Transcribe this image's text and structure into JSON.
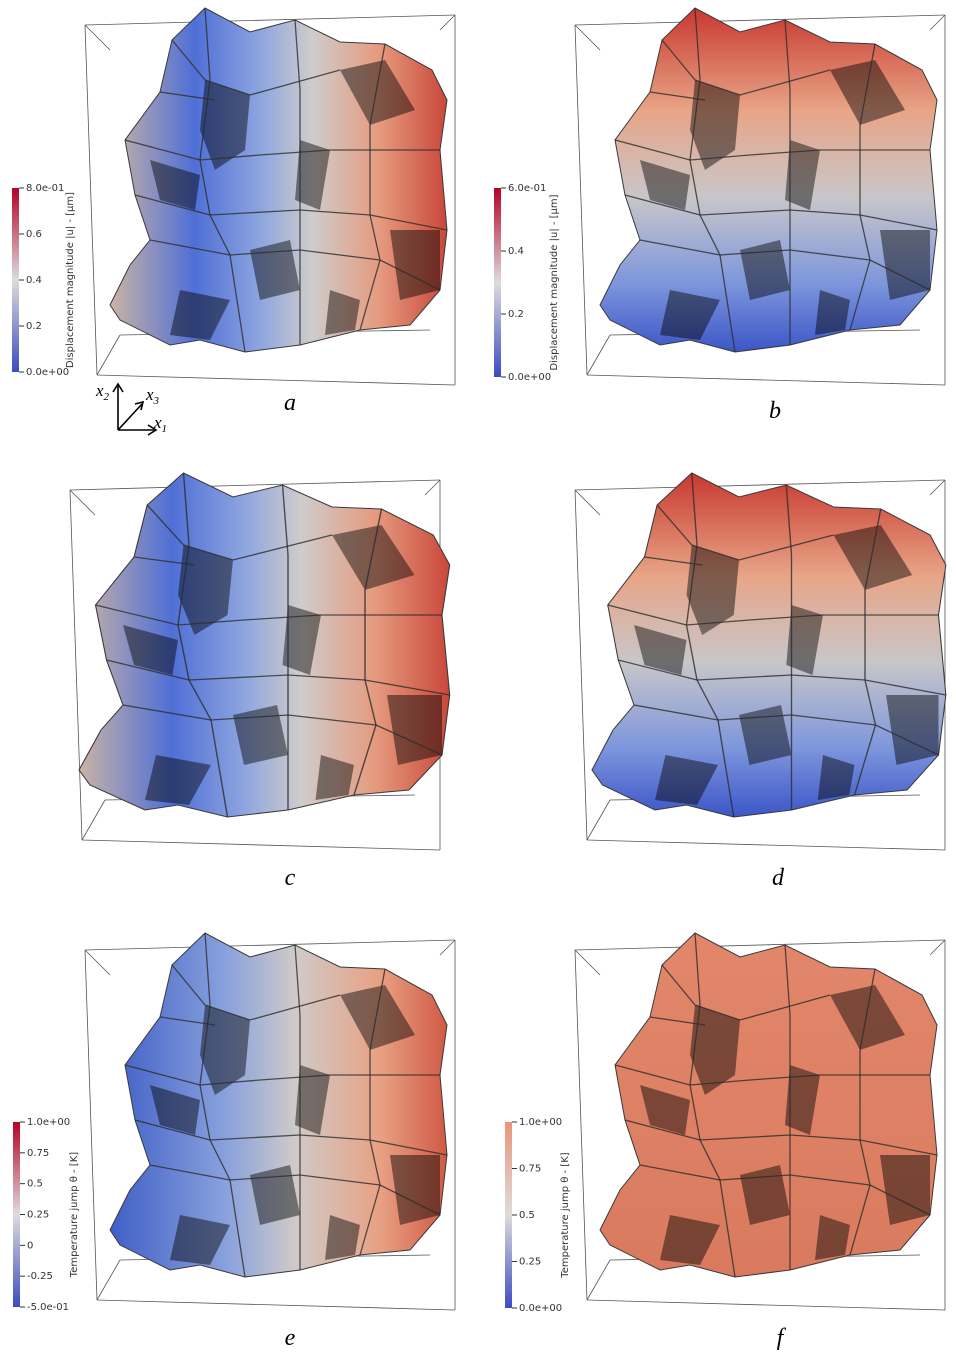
{
  "panels": [
    {
      "label": "a",
      "colorbar": {
        "title": "Displacement magnitude |u| - [μm]",
        "ticks": [
          "8.0e-01",
          "0.6",
          "0.4",
          "0.2",
          "0.0e+00"
        ]
      }
    },
    {
      "label": "b",
      "colorbar": {
        "title": "Displacement magnitude |u| - [μm]",
        "ticks": [
          "6.0e-01",
          "0.4",
          "0.2",
          "0.0e+00"
        ]
      }
    },
    {
      "label": "c"
    },
    {
      "label": "d"
    },
    {
      "label": "e",
      "colorbar": {
        "title": "Temperature jump θ - [K]",
        "ticks": [
          "1.0e+00",
          "0.75",
          "0.5",
          "0.25",
          "0",
          "-0.25",
          "-5.0e-01"
        ]
      }
    },
    {
      "label": "f",
      "colorbar": {
        "title": "Temperature jump θ - [K]",
        "ticks": [
          "1.0e+00",
          "0.75",
          "0.5",
          "0.25",
          "0.0e+00"
        ]
      }
    }
  ],
  "axes": [
    {
      "base": "x",
      "sub": "2"
    },
    {
      "base": "x",
      "sub": "3"
    },
    {
      "base": "x",
      "sub": "1"
    }
  ]
}
